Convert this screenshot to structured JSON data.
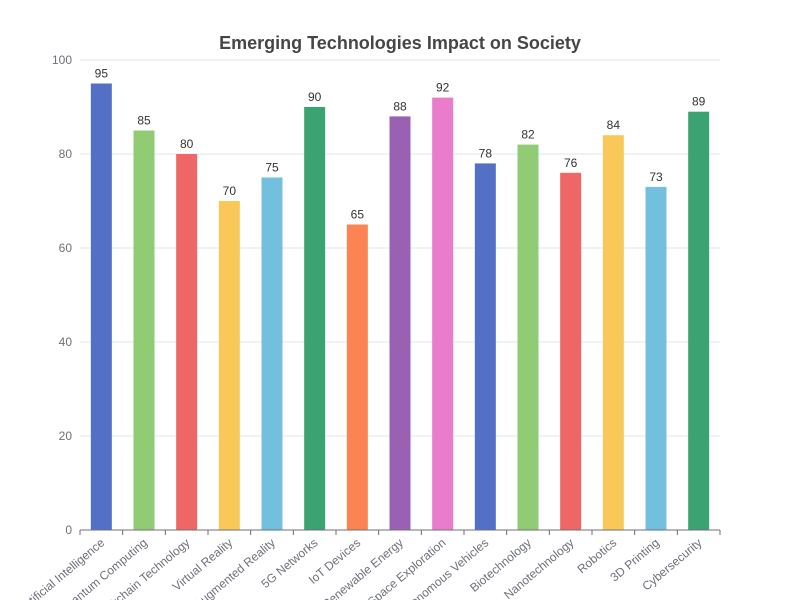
{
  "chart_data": {
    "type": "bar",
    "title": "Emerging Technologies Impact on Society",
    "xlabel": "",
    "ylabel": "",
    "ylim": [
      0,
      100
    ],
    "yticks": [
      0,
      20,
      40,
      60,
      80,
      100
    ],
    "grid": true,
    "categories": [
      "Artificial Intelligence",
      "Quantum Computing",
      "Blockchain Technology",
      "Virtual Reality",
      "Augmented Reality",
      "5G Networks",
      "IoT Devices",
      "Renewable Energy",
      "Space Exploration",
      "Autonomous Vehicles",
      "Biotechnology",
      "Nanotechnology",
      "Robotics",
      "3D Printing",
      "Cybersecurity"
    ],
    "values": [
      95,
      85,
      80,
      70,
      75,
      90,
      65,
      88,
      92,
      78,
      82,
      76,
      84,
      73,
      89
    ],
    "colors": [
      "#5470c6",
      "#91cc75",
      "#ee6666",
      "#fac858",
      "#73c0de",
      "#3ba272",
      "#fc8452",
      "#9a60b4",
      "#ea7ccc",
      "#5470c6",
      "#91cc75",
      "#ee6666",
      "#fac858",
      "#73c0de",
      "#3ba272"
    ]
  }
}
